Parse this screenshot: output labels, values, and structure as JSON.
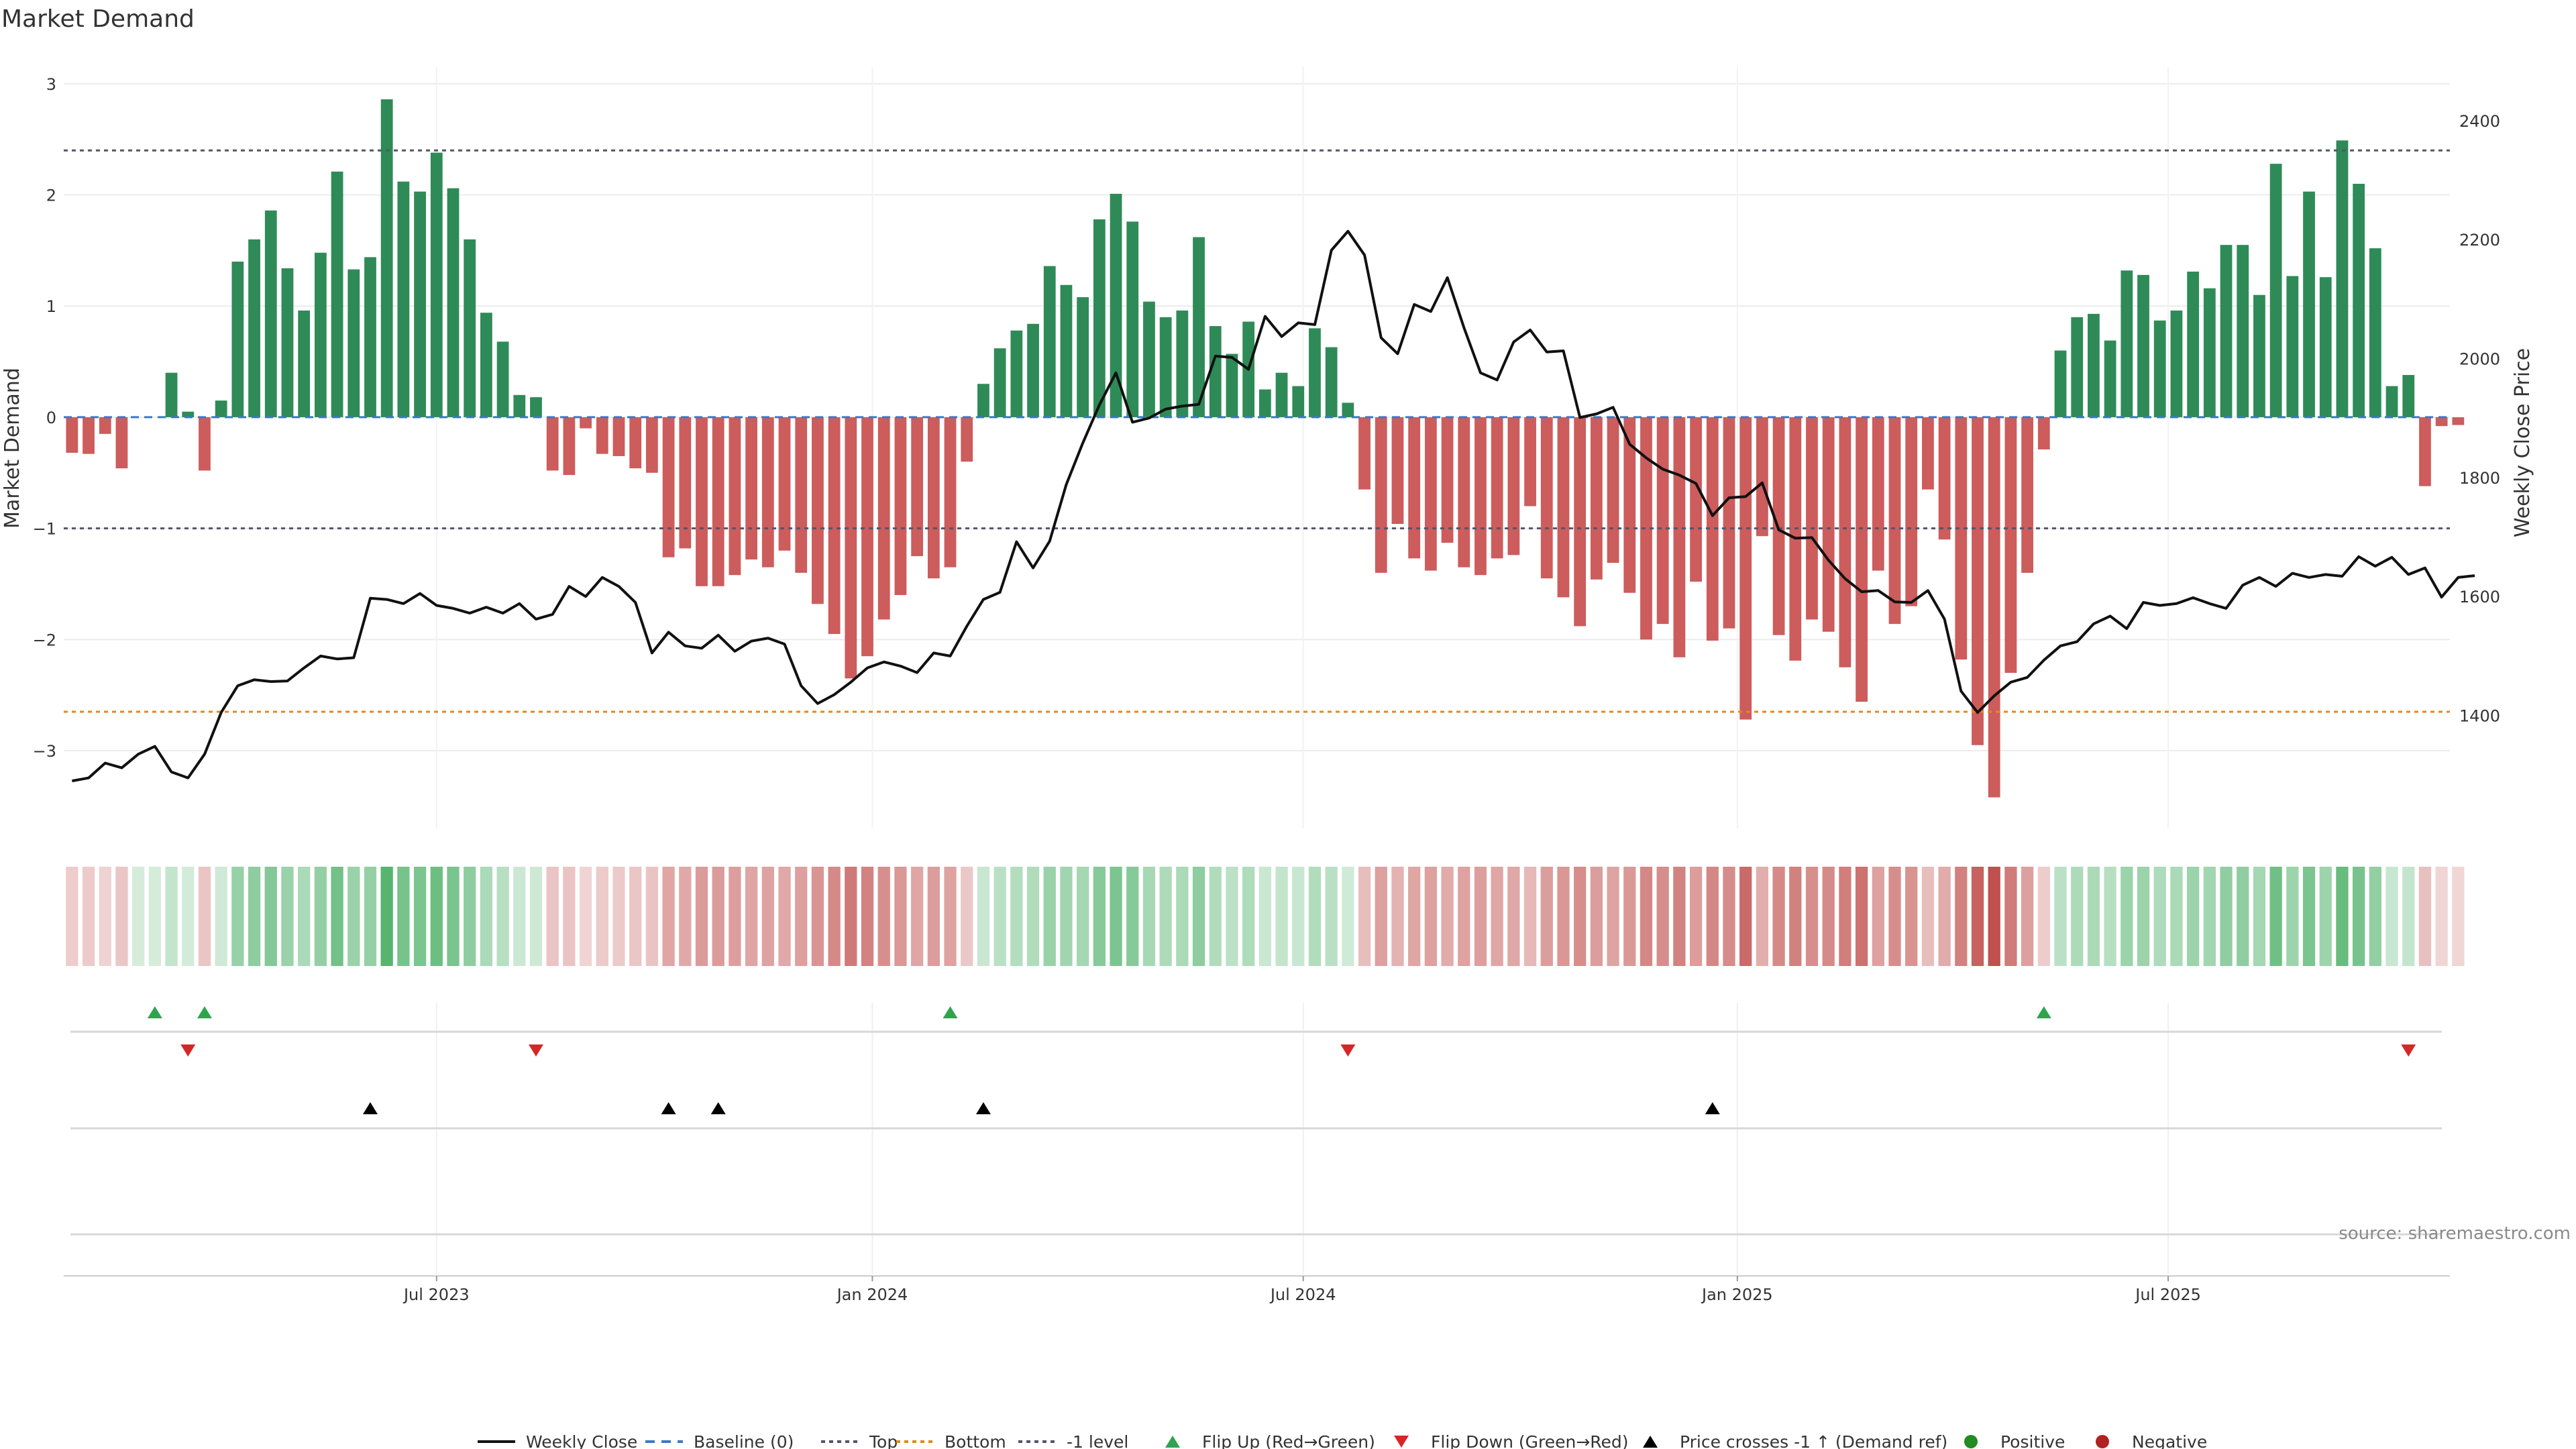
{
  "chart_data": {
    "type": "bar",
    "title": "Market Demand",
    "ylabel_left": "Market Demand",
    "ylabel_right": "Weekly Close Price",
    "ylim_left": [
      -3.7,
      3.15
    ],
    "ylim_right": [
      1210,
      2490
    ],
    "yticks_left": [
      3,
      2,
      1,
      0,
      -1,
      -2,
      -3
    ],
    "ytick_labels_left": [
      "3",
      "2",
      "1",
      "0",
      "−1",
      "−2",
      "−3"
    ],
    "yticks_right": [
      2400,
      2200,
      2000,
      1800,
      1600,
      1400
    ],
    "ytick_labels_right": [
      "2400",
      "2200",
      "2000",
      "1800",
      "1600",
      "1400"
    ],
    "x_range_weeks": [
      -0.5,
      143.5
    ],
    "xtick_positions": [
      22,
      48.3,
      74.3,
      100.5,
      126.5
    ],
    "xtick_labels": [
      "Jul 2023",
      "Jan 2024",
      "Jul 2024",
      "Jan 2025",
      "Jul 2025"
    ],
    "reference_lines": [
      {
        "name": "Top",
        "value": 2.4,
        "color": "#55556a"
      },
      {
        "name": "-1 level",
        "value": -1,
        "color": "#55556a"
      },
      {
        "name": "Bottom",
        "value": -2.65,
        "color": "#e08a1e"
      }
    ],
    "market_demand": [
      -0.32,
      -0.33,
      -0.15,
      -0.46,
      0,
      0,
      0.4,
      0.05,
      -0.48,
      0.15,
      1.4,
      1.6,
      1.86,
      1.34,
      0.96,
      1.48,
      2.21,
      1.33,
      1.44,
      2.86,
      2.12,
      2.03,
      2.38,
      2.06,
      1.6,
      0.94,
      0.68,
      0.2,
      0.18,
      -0.48,
      -0.52,
      -0.1,
      -0.33,
      -0.35,
      -0.46,
      -0.5,
      -1.26,
      -1.18,
      -1.52,
      -1.52,
      -1.42,
      -1.28,
      -1.35,
      -1.2,
      -1.4,
      -1.68,
      -1.95,
      -2.35,
      -2.15,
      -1.82,
      -1.6,
      -1.25,
      -1.45,
      -1.35,
      -0.4,
      0.3,
      0.62,
      0.78,
      0.84,
      1.36,
      1.19,
      1.08,
      1.78,
      2.01,
      1.76,
      1.04,
      0.9,
      0.96,
      1.62,
      0.82,
      0.57,
      0.86,
      0.25,
      0.4,
      0.28,
      0.8,
      0.63,
      0.13,
      -0.65,
      -1.4,
      -0.96,
      -1.27,
      -1.38,
      -1.13,
      -1.35,
      -1.42,
      -1.27,
      -1.24,
      -0.8,
      -1.45,
      -1.62,
      -1.88,
      -1.46,
      -1.31,
      -1.58,
      -2,
      -1.86,
      -2.16,
      -1.48,
      -2.01,
      -1.9,
      -2.72,
      -1.07,
      -1.96,
      -2.19,
      -1.82,
      -1.93,
      -2.25,
      -2.56,
      -1.38,
      -1.86,
      -1.7,
      -0.65,
      -1.1,
      -2.18,
      -2.95,
      -3.42,
      -2.3,
      -1.4,
      -0.29,
      0.6,
      0.9,
      0.93,
      0.69,
      1.32,
      1.28,
      0.87,
      0.96,
      1.31,
      1.16,
      1.55,
      1.55,
      1.1,
      2.28,
      1.27,
      2.03,
      1.26,
      2.49,
      2.1,
      1.52,
      0.28,
      0.38,
      -0.62,
      -0.08,
      -0.07
    ],
    "weekly_close": [
      1290,
      1295,
      1320,
      1312,
      1335,
      1348,
      1305,
      1295,
      1335,
      1405,
      1450,
      1460,
      1457,
      1458,
      1480,
      1500,
      1495,
      1497,
      1597,
      1595,
      1588,
      1605,
      1585,
      1580,
      1572,
      1582,
      1572,
      1588,
      1562,
      1570,
      1617,
      1600,
      1632,
      1617,
      1590,
      1505,
      1540,
      1517,
      1513,
      1535,
      1508,
      1525,
      1530,
      1520,
      1450,
      1420,
      1435,
      1456,
      1480,
      1490,
      1483,
      1472,
      1505,
      1500,
      1550,
      1595,
      1607,
      1692,
      1648,
      1693,
      1788,
      1858,
      1922,
      1976,
      1893,
      1900,
      1915,
      1920,
      1923,
      2004,
      2002,
      1982,
      2071,
      2037,
      2060,
      2057,
      2182,
      2214,
      2174,
      2035,
      2008,
      2091,
      2079,
      2136,
      2052,
      1976,
      1964,
      2028,
      2048,
      2011,
      2013,
      1901,
      1907,
      1918,
      1856,
      1833,
      1814,
      1804,
      1790,
      1736,
      1766,
      1768,
      1791,
      1712,
      1698,
      1699,
      1661,
      1630,
      1608,
      1610,
      1591,
      1590,
      1610,
      1562,
      1441,
      1405,
      1433,
      1456,
      1464,
      1493,
      1517,
      1524,
      1554,
      1567,
      1546,
      1590,
      1585,
      1588,
      1598,
      1588,
      1580,
      1619,
      1632,
      1617,
      1639,
      1632,
      1637,
      1634,
      1667,
      1651,
      1666,
      1637,
      1648,
      1599,
      1632,
      1635
    ],
    "flip_up_weeks": [
      5,
      8,
      53,
      119
    ],
    "flip_down_weeks": [
      7,
      28,
      77,
      141
    ],
    "price_cross_weeks": [
      18,
      36,
      39,
      55,
      99
    ],
    "legend": [
      "Weekly Close",
      "Baseline (0)",
      "Top",
      "Bottom",
      "-1 level",
      "Flip Up (Red→Green)",
      "Flip Down (Green→Red)",
      "Price crosses -1 ↑ (Demand ref)",
      "Positive",
      "Negative"
    ],
    "source": "source: sharemaestro.com",
    "colors": {
      "positive": "#2e8b57",
      "negative": "#cd5c5c",
      "price": "#111111",
      "baseline": "#3a78c8",
      "flip_up": "#2ea44f",
      "flip_down": "#d62728",
      "price_cross": "#000000",
      "legend_positive": "#228b22",
      "legend_negative": "#b22222"
    }
  }
}
